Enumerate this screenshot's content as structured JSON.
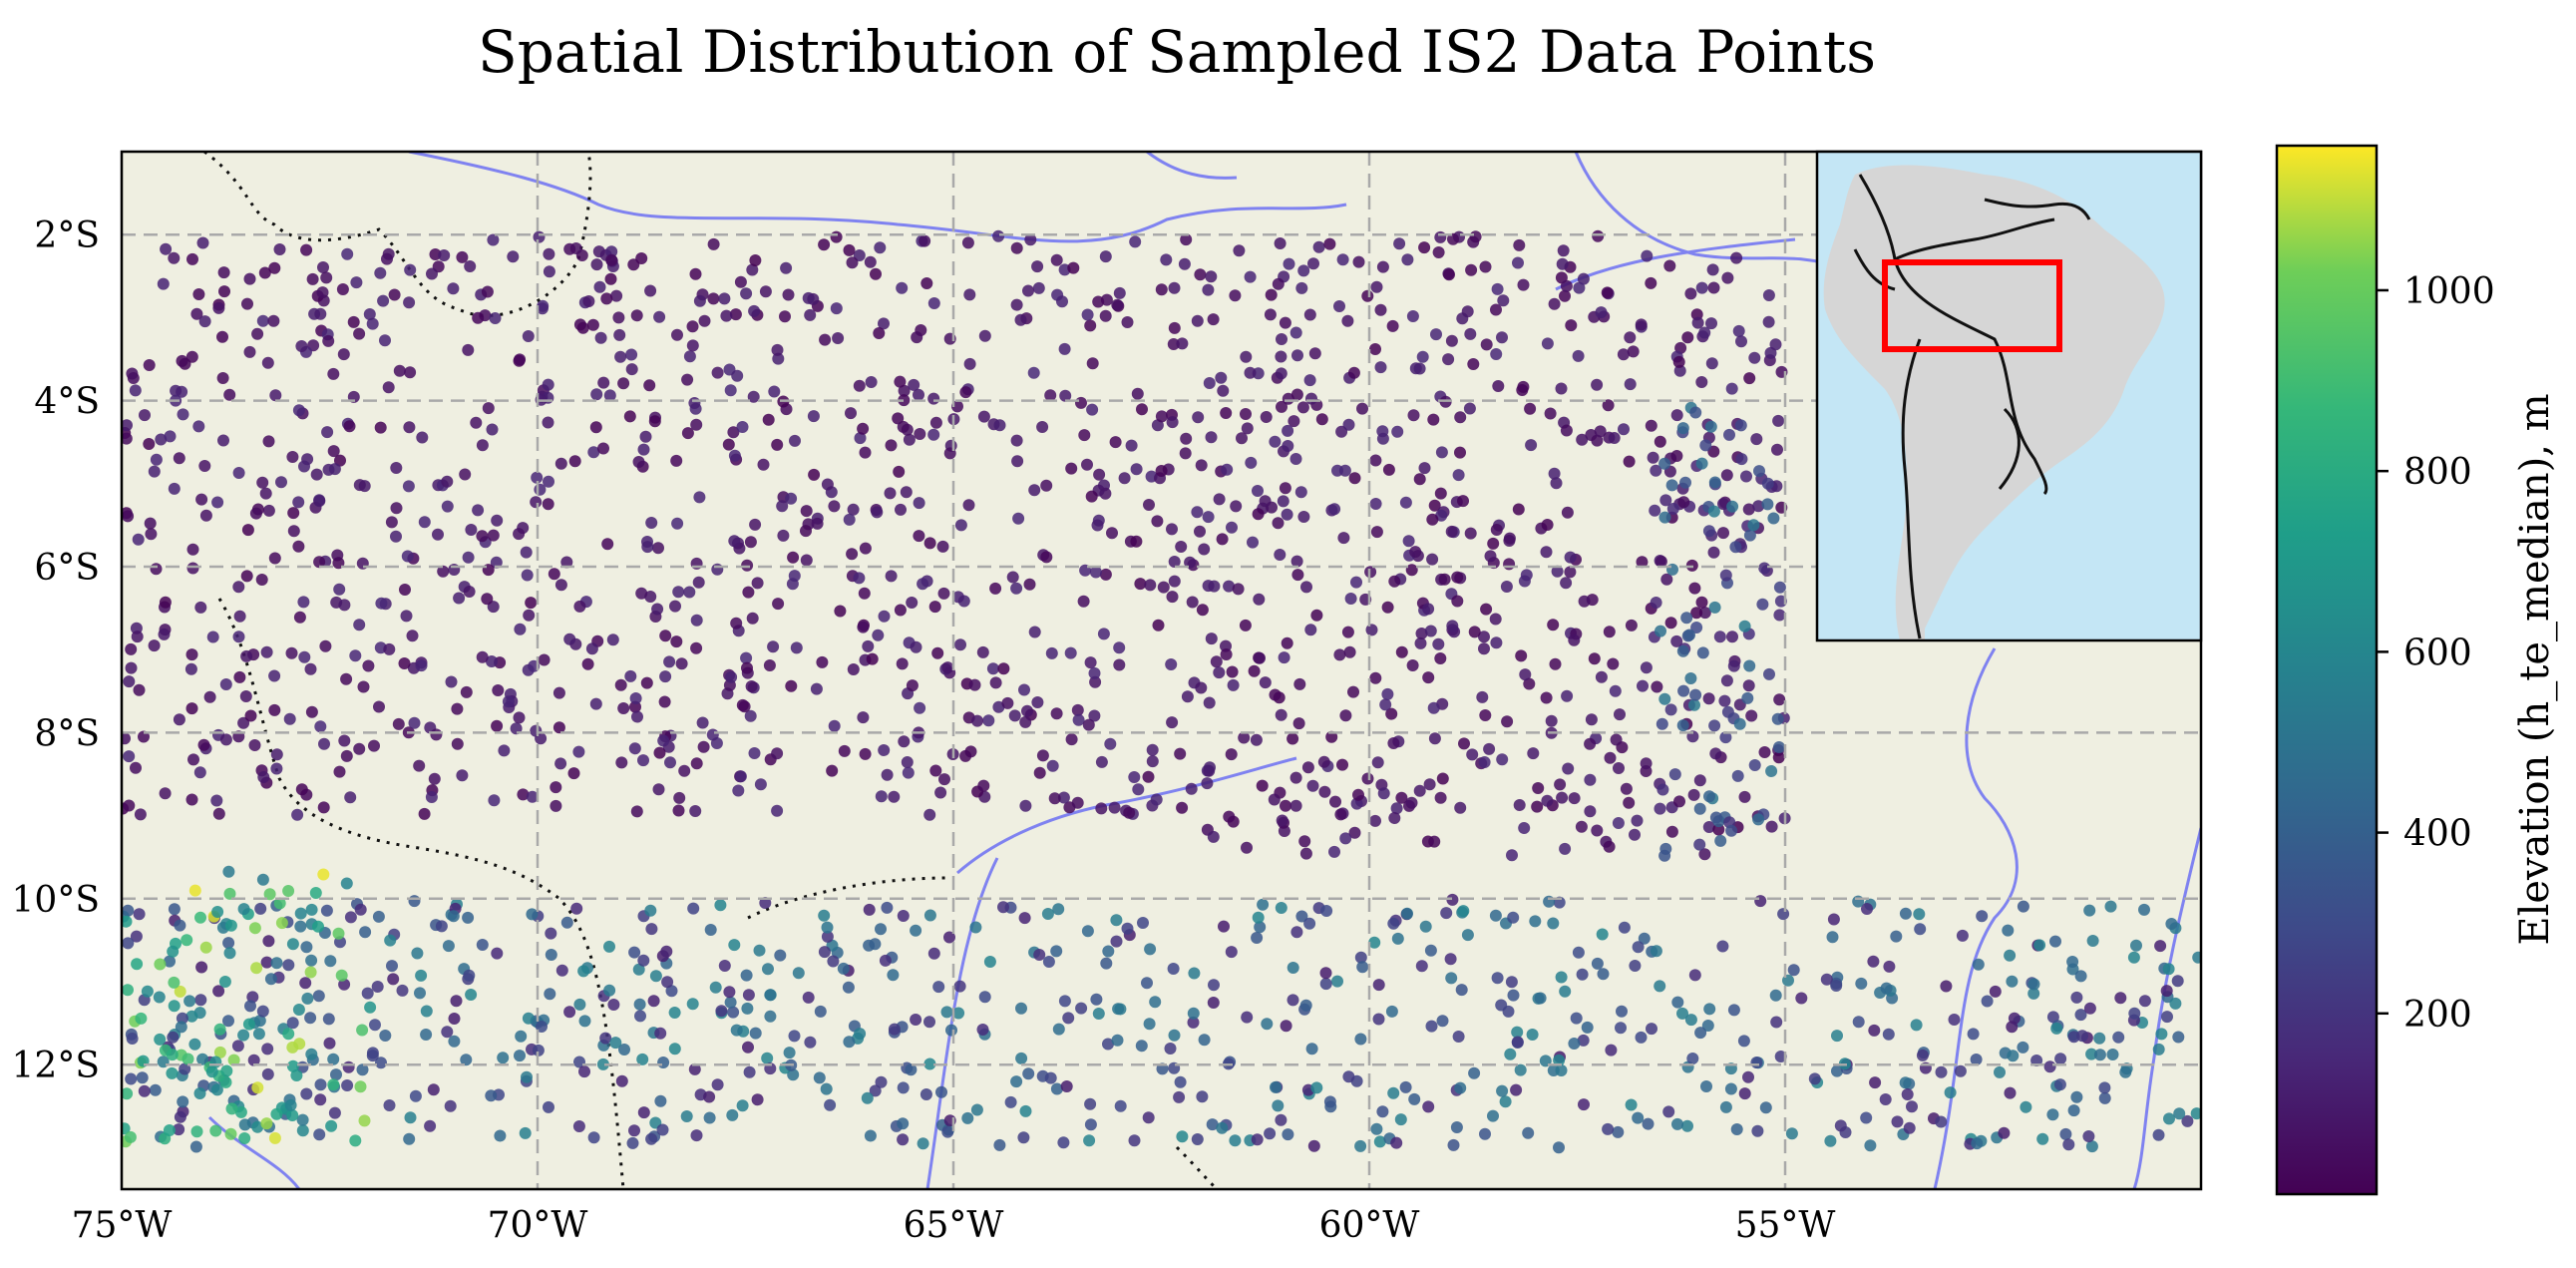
{
  "chart_data": {
    "type": "scatter",
    "title": "Spatial Distribution of Sampled IS2 Data Points",
    "xlabel": "",
    "ylabel": "",
    "xlim": [
      -75,
      -50
    ],
    "ylim": [
      -13.5,
      -1
    ],
    "x_ticks": [
      {
        "value": -75,
        "label": "75°W"
      },
      {
        "value": -70,
        "label": "70°W"
      },
      {
        "value": -65,
        "label": "65°W"
      },
      {
        "value": -60,
        "label": "60°W"
      },
      {
        "value": -55,
        "label": "55°W"
      }
    ],
    "y_ticks": [
      {
        "value": -2,
        "label": "2°S"
      },
      {
        "value": -4,
        "label": "4°S"
      },
      {
        "value": -6,
        "label": "6°S"
      },
      {
        "value": -8,
        "label": "8°S"
      },
      {
        "value": -10,
        "label": "10°S"
      },
      {
        "value": -12,
        "label": "12°S"
      }
    ],
    "grid": true,
    "colorbar": {
      "label": "Elevation (h_te_median), m",
      "range": [
        0,
        1160
      ],
      "ticks": [
        200,
        400,
        600,
        800,
        1000
      ],
      "colormap": "viridis"
    },
    "sampling_blocks": [
      {
        "lon": [
          -75,
          -55
        ],
        "lat": [
          -9,
          -2
        ],
        "elev_min": 0,
        "elev_max": 150
      },
      {
        "lon": [
          -62,
          -55
        ],
        "lat": [
          -9.5,
          -9
        ],
        "elev_min": 0,
        "elev_max": 150
      },
      {
        "lon": [
          -56.5,
          -55
        ],
        "lat": [
          -9.5,
          -4
        ],
        "elev_min": 150,
        "elev_max": 550
      },
      {
        "lon": [
          -75,
          -50
        ],
        "lat": [
          -13,
          -10
        ],
        "elev_min": 100,
        "elev_max": 600
      },
      {
        "lon": [
          -75,
          -72
        ],
        "lat": [
          -13,
          -9.6
        ],
        "elev_min": 500,
        "elev_max": 1150
      }
    ],
    "inset": {
      "description_region": "South America",
      "box_lon": [
        -75,
        -50
      ],
      "box_lat": [
        -13,
        -2
      ]
    }
  },
  "colors": {
    "land": "#efefe1",
    "ocean": "#c4e6f5",
    "inset_land": "#d6d6d6",
    "river": "#7f82f0",
    "border": "#111111",
    "grid": "#a9a9a9",
    "highlight_box": "#ff0000"
  }
}
